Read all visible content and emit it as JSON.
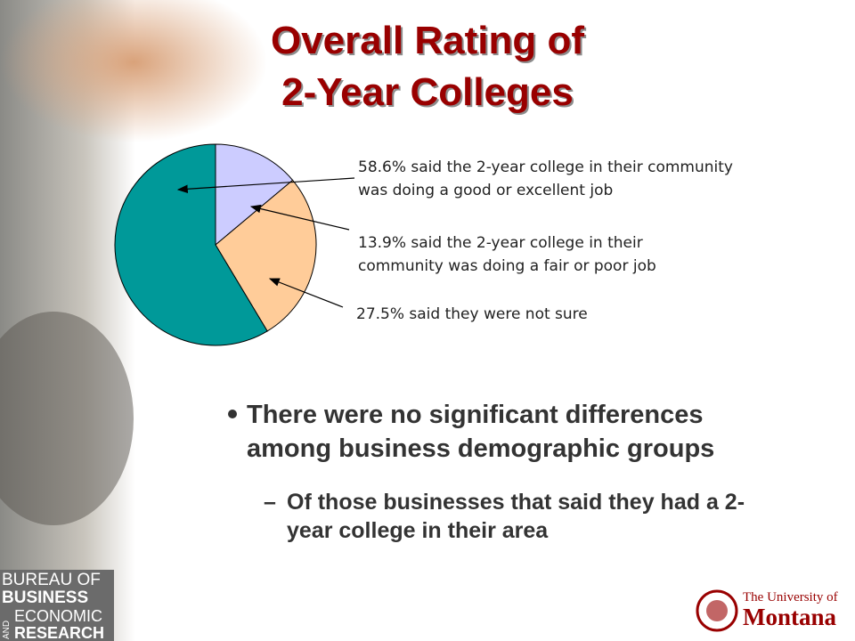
{
  "chart_data": {
    "type": "pie",
    "title": [
      "Overall Rating of",
      "2-Year Colleges"
    ],
    "values": [
      13.9,
      27.5,
      58.6
    ],
    "colors": [
      "#ccccff",
      "#ffcc99",
      "#009999"
    ],
    "annotations": [
      [
        "13.9% said the 2-year college in their",
        "community was doing a fair or poor job"
      ],
      [
        "27.5% said they were not sure"
      ],
      [
        "58.6% said the 2-year college in their community",
        "was doing a good or excellent job"
      ]
    ]
  },
  "bullets": [
    {
      "text": [
        "There were no significant differences",
        "among business demographic groups"
      ],
      "sub": [
        [
          "Of those businesses that said they had a 2-",
          "year college in their area"
        ]
      ]
    }
  ],
  "sub_marker": "–",
  "logo_left": [
    "BUREAU OF",
    "BUSINESS",
    "AND",
    "ECONOMIC",
    "RESEARCH"
  ],
  "logo_right": [
    "The University of",
    "Montana"
  ]
}
